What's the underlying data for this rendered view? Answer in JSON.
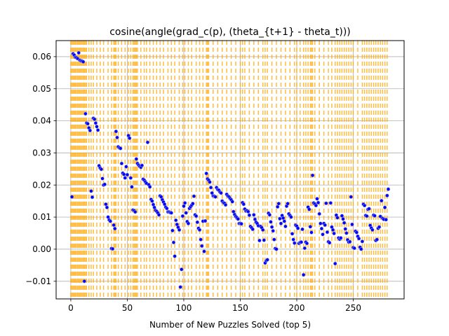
{
  "chart_data": {
    "type": "scatter",
    "title": "cosine(angle(grad_c(p), (theta_{t+1} - theta_t)))",
    "xlabel": "Number of New Puzzles Solved (top 5)",
    "ylabel": "",
    "xlim": [
      -13,
      295
    ],
    "ylim": [
      -0.0155,
      0.065
    ],
    "xticks": [
      0,
      50,
      100,
      150,
      200,
      250
    ],
    "yticks": [
      -0.01,
      0.0,
      0.01,
      0.02,
      0.03,
      0.04,
      0.05,
      0.06
    ],
    "ytick_labels": [
      "−0.01",
      "0.00",
      "0.01",
      "0.02",
      "0.03",
      "0.04",
      "0.05",
      "0.06"
    ],
    "grid": true,
    "point_color": "#0000ff",
    "point_edge_color": "#9aa0d0",
    "vline_color": "#ffa500",
    "vlines": [
      0,
      1,
      2,
      3,
      4,
      5,
      6,
      7,
      8,
      9,
      10,
      11,
      12,
      13,
      14,
      16,
      18,
      20,
      23,
      26,
      29,
      33,
      36,
      38,
      39,
      40,
      42,
      45,
      48,
      51,
      53,
      55,
      56,
      57,
      58,
      59,
      62,
      65,
      67,
      70,
      73,
      76,
      79,
      82,
      86,
      89,
      92,
      96,
      99,
      101,
      104,
      107,
      111,
      114,
      117,
      120,
      121,
      122,
      126,
      130,
      134,
      138,
      142,
      146,
      150,
      152,
      154,
      158,
      162,
      166,
      170,
      172,
      174,
      178,
      182,
      186,
      190,
      194,
      198,
      200,
      203,
      206,
      208,
      210,
      212,
      213,
      214,
      216,
      220,
      224,
      228,
      231,
      234,
      236,
      238,
      240,
      242,
      244,
      246,
      248,
      250,
      254,
      258,
      260,
      262,
      264,
      266,
      268,
      270,
      272,
      274,
      276,
      278,
      280
    ],
    "points": [
      [
        1,
        0.0163
      ],
      [
        2,
        0.0609
      ],
      [
        3,
        0.0605
      ],
      [
        4,
        0.0598
      ],
      [
        5,
        0.0597
      ],
      [
        6,
        0.0594
      ],
      [
        7,
        0.0612
      ],
      [
        8,
        0.0589
      ],
      [
        9,
        0.0587
      ],
      [
        10,
        0.0586
      ],
      [
        11,
        0.0584
      ],
      [
        12,
        -0.01
      ],
      [
        13,
        0.0422
      ],
      [
        14,
        0.0393
      ],
      [
        15,
        0.0391
      ],
      [
        16,
        0.0378
      ],
      [
        17,
        0.037
      ],
      [
        18,
        0.0181
      ],
      [
        19,
        0.0162
      ],
      [
        20,
        0.0408
      ],
      [
        21,
        0.0405
      ],
      [
        22,
        0.0393
      ],
      [
        23,
        0.0382
      ],
      [
        24,
        0.0371
      ],
      [
        25,
        0.026
      ],
      [
        26,
        0.0253
      ],
      [
        27,
        0.0249
      ],
      [
        28,
        0.022
      ],
      [
        29,
        0.02
      ],
      [
        30,
        0.0202
      ],
      [
        31,
        0.014
      ],
      [
        32,
        0.013
      ],
      [
        33,
        0.01
      ],
      [
        34,
        0.0091
      ],
      [
        35,
        0.0087
      ],
      [
        36,
        0.0002
      ],
      [
        37,
        0.0001
      ],
      [
        38,
        0.0075
      ],
      [
        39,
        0.0064
      ],
      [
        40,
        0.0367
      ],
      [
        41,
        0.0348
      ],
      [
        42,
        0.0319
      ],
      [
        43,
        0.0316
      ],
      [
        44,
        0.0314
      ],
      [
        45,
        0.0267
      ],
      [
        46,
        0.0237
      ],
      [
        47,
        0.0233
      ],
      [
        48,
        0.0222
      ],
      [
        49,
        0.0257
      ],
      [
        50,
        0.0232
      ],
      [
        51,
        0.0354
      ],
      [
        52,
        0.0346
      ],
      [
        53,
        0.0222
      ],
      [
        54,
        0.0194
      ],
      [
        55,
        0.0122
      ],
      [
        56,
        0.012
      ],
      [
        57,
        0.0116
      ],
      [
        58,
        0.0281
      ],
      [
        59,
        0.0267
      ],
      [
        60,
        0.0262
      ],
      [
        61,
        0.0258
      ],
      [
        62,
        0.0255
      ],
      [
        63,
        0.0261
      ],
      [
        64,
        0.0218
      ],
      [
        65,
        0.0215
      ],
      [
        66,
        0.021
      ],
      [
        67,
        0.0205
      ],
      [
        68,
        0.0333
      ],
      [
        69,
        0.0201
      ],
      [
        70,
        0.0194
      ],
      [
        71,
        0.0155
      ],
      [
        72,
        0.015
      ],
      [
        73,
        0.0139
      ],
      [
        74,
        0.013
      ],
      [
        75,
        0.0121
      ],
      [
        76,
        0.0118
      ],
      [
        77,
        0.0113
      ],
      [
        78,
        0.0107
      ],
      [
        79,
        0.0166
      ],
      [
        80,
        0.0163
      ],
      [
        81,
        0.0154
      ],
      [
        82,
        0.0147
      ],
      [
        83,
        0.014
      ],
      [
        84,
        0.0131
      ],
      [
        85,
        0.0127
      ],
      [
        86,
        0.0116
      ],
      [
        87,
        0.0116
      ],
      [
        88,
        0.0114
      ],
      [
        89,
        0.0113
      ],
      [
        90,
        0.0058
      ],
      [
        91,
        0.0021
      ],
      [
        92,
        -0.0022
      ],
      [
        93,
        0.009
      ],
      [
        94,
        0.0077
      ],
      [
        95,
        0.0068
      ],
      [
        96,
        0.006
      ],
      [
        97,
        -0.0118
      ],
      [
        98,
        -0.0063
      ],
      [
        99,
        0.0103
      ],
      [
        100,
        0.0134
      ],
      [
        101,
        0.0144
      ],
      [
        102,
        0.0113
      ],
      [
        103,
        0.0086
      ],
      [
        104,
        0.008
      ],
      [
        105,
        0.0127
      ],
      [
        106,
        0.0132
      ],
      [
        107,
        0.0137
      ],
      [
        108,
        0.0142
      ],
      [
        109,
        0.0165
      ],
      [
        110,
        0.0107
      ],
      [
        111,
        0.0103
      ],
      [
        112,
        0.0084
      ],
      [
        113,
        0.0065
      ],
      [
        114,
        0.006
      ],
      [
        115,
        0.003
      ],
      [
        116,
        0.001
      ],
      [
        117,
        0.0087
      ],
      [
        118,
        -0.0007
      ],
      [
        119,
        0.0088
      ],
      [
        120,
        0.0236
      ],
      [
        121,
        0.0219
      ],
      [
        122,
        0.0215
      ],
      [
        123,
        0.0209
      ],
      [
        124,
        0.0192
      ],
      [
        125,
        0.0175
      ],
      [
        126,
        0.0166
      ],
      [
        127,
        0.0165
      ],
      [
        128,
        0.0163
      ],
      [
        129,
        0.0192
      ],
      [
        130,
        0.0186
      ],
      [
        131,
        0.0184
      ],
      [
        132,
        0.0178
      ],
      [
        133,
        0.0175
      ],
      [
        134,
        0.015
      ],
      [
        135,
        0.0145
      ],
      [
        136,
        0.0143
      ],
      [
        137,
        0.0138
      ],
      [
        138,
        0.0171
      ],
      [
        139,
        0.0166
      ],
      [
        140,
        0.0163
      ],
      [
        141,
        0.0158
      ],
      [
        142,
        0.0154
      ],
      [
        143,
        0.0148
      ],
      [
        144,
        0.0117
      ],
      [
        145,
        0.0108
      ],
      [
        146,
        0.0102
      ],
      [
        147,
        0.0098
      ],
      [
        148,
        0.0094
      ],
      [
        149,
        0.008
      ],
      [
        150,
        0.008
      ],
      [
        151,
        0.0079
      ],
      [
        152,
        0.0145
      ],
      [
        153,
        0.014
      ],
      [
        154,
        0.0125
      ],
      [
        155,
        0.0119
      ],
      [
        156,
        0.012
      ],
      [
        157,
        0.0117
      ],
      [
        158,
        0.0106
      ],
      [
        159,
        0.0071
      ],
      [
        160,
        0.0067
      ],
      [
        161,
        0.0062
      ],
      [
        162,
        0.0107
      ],
      [
        163,
        0.0093
      ],
      [
        164,
        0.0084
      ],
      [
        165,
        0.008
      ],
      [
        166,
        0.0073
      ],
      [
        167,
        0.0027
      ],
      [
        168,
        0.0071
      ],
      [
        169,
        0.0067
      ],
      [
        170,
        0.006
      ],
      [
        171,
        0.0028
      ],
      [
        172,
        -0.0043
      ],
      [
        173,
        -0.0036
      ],
      [
        174,
        -0.0033
      ],
      [
        175,
        0.0112
      ],
      [
        176,
        0.0107
      ],
      [
        177,
        0.0085
      ],
      [
        178,
        0.0069
      ],
      [
        179,
        0.0057
      ],
      [
        180,
        0.003
      ],
      [
        181,
        0.0002
      ],
      [
        182,
        0.0
      ],
      [
        183,
        0.0132
      ],
      [
        184,
        0.0142
      ],
      [
        185,
        0.0095
      ],
      [
        186,
        0.008
      ],
      [
        187,
        0.0105
      ],
      [
        188,
        0.0097
      ],
      [
        189,
        0.0087
      ],
      [
        190,
        0.0071
      ],
      [
        191,
        0.0134
      ],
      [
        192,
        0.0142
      ],
      [
        193,
        0.011
      ],
      [
        194,
        0.0105
      ],
      [
        195,
        0.01
      ],
      [
        196,
        0.0048
      ],
      [
        197,
        0.003
      ],
      [
        198,
        0.0019
      ],
      [
        199,
        0.0075
      ],
      [
        200,
        0.0072
      ],
      [
        201,
        0.0065
      ],
      [
        202,
        0.0018
      ],
      [
        203,
        0.0021
      ],
      [
        204,
        0.0022
      ],
      [
        205,
        0.0062
      ],
      [
        206,
        -0.008
      ],
      [
        207,
        0.0003
      ],
      [
        208,
        0.0022
      ],
      [
        209,
        0.0018
      ],
      [
        210,
        0.0131
      ],
      [
        211,
        0.0124
      ],
      [
        212,
        0.007
      ],
      [
        213,
        0.0052
      ],
      [
        214,
        0.023
      ],
      [
        215,
        0.0144
      ],
      [
        216,
        0.0141
      ],
      [
        217,
        0.0136
      ],
      [
        218,
        0.0157
      ],
      [
        219,
        0.0145
      ],
      [
        220,
        0.011
      ],
      [
        221,
        0.008
      ],
      [
        222,
        0.0064
      ],
      [
        223,
        0.0046
      ],
      [
        224,
        0.008
      ],
      [
        225,
        0.0075
      ],
      [
        226,
        0.0143
      ],
      [
        227,
        0.0053
      ],
      [
        228,
        0.0023
      ],
      [
        229,
        0.002
      ],
      [
        230,
        0.0144
      ],
      [
        231,
        0.0069
      ],
      [
        232,
        0.006
      ],
      [
        233,
        0.0049
      ],
      [
        234,
        -0.0045
      ],
      [
        235,
        0.0106
      ],
      [
        236,
        0.0098
      ],
      [
        237,
        0.0035
      ],
      [
        238,
        0.0031
      ],
      [
        239,
        0.0035
      ],
      [
        240,
        0.0104
      ],
      [
        241,
        0.0094
      ],
      [
        242,
        0.0082
      ],
      [
        243,
        0.0063
      ],
      [
        244,
        0.005
      ],
      [
        245,
        0.0029
      ],
      [
        246,
        0.0022
      ],
      [
        247,
        0.0023
      ],
      [
        248,
        0.0163
      ],
      [
        249,
        0.0077
      ],
      [
        250,
        0.0005
      ],
      [
        251,
        0.0003
      ],
      [
        252,
        0.0056
      ],
      [
        253,
        0.0052
      ],
      [
        254,
        0.004
      ],
      [
        255,
        0.0033
      ],
      [
        256,
        0.0006
      ],
      [
        257,
        0.0
      ],
      [
        258,
        0.0024
      ],
      [
        259,
        0.014
      ],
      [
        260,
        0.0136
      ],
      [
        261,
        0.0105
      ],
      [
        262,
        0.0103
      ],
      [
        263,
        0.0124
      ],
      [
        264,
        0.0126
      ],
      [
        265,
        0.0074
      ],
      [
        266,
        0.0066
      ],
      [
        267,
        0.006
      ],
      [
        268,
        0.0106
      ],
      [
        269,
        0.0104
      ],
      [
        270,
        0.0027
      ],
      [
        271,
        0.003
      ],
      [
        272,
        0.0065
      ],
      [
        273,
        0.0069
      ],
      [
        274,
        0.0102
      ],
      [
        275,
        0.0151
      ],
      [
        276,
        0.0096
      ],
      [
        277,
        0.0093
      ],
      [
        278,
        0.013
      ],
      [
        279,
        0.0092
      ],
      [
        280,
        0.0167
      ],
      [
        281,
        0.0187
      ]
    ]
  }
}
